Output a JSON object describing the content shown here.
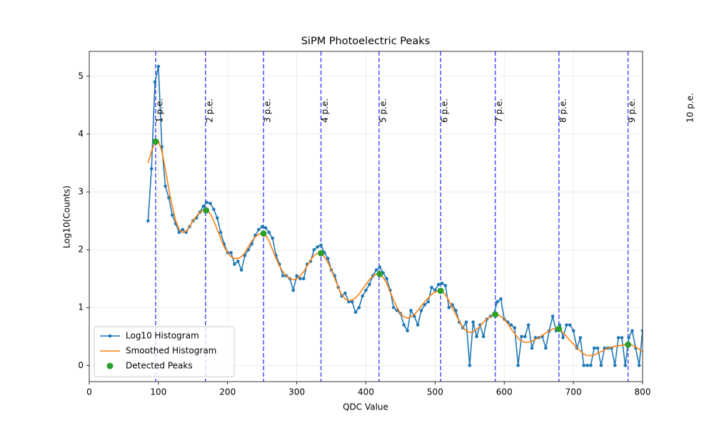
{
  "chart_data": {
    "type": "line",
    "title": "SiPM Photoelectric Peaks",
    "xlabel": "QDC Value",
    "ylabel": "Log10(Counts)",
    "x": [
      85,
      90,
      95,
      100,
      105,
      110,
      115,
      120,
      125,
      130,
      135,
      140,
      145,
      150,
      155,
      160,
      165,
      170,
      175,
      180,
      185,
      190,
      195,
      200,
      205,
      210,
      215,
      220,
      225,
      230,
      235,
      240,
      245,
      250,
      255,
      260,
      265,
      270,
      275,
      280,
      285,
      290,
      295,
      300,
      305,
      310,
      315,
      320,
      325,
      330,
      335,
      340,
      345,
      350,
      355,
      360,
      365,
      370,
      375,
      380,
      385,
      390,
      395,
      400,
      405,
      410,
      415,
      420,
      425,
      430,
      435,
      440,
      445,
      450,
      455,
      460,
      465,
      470,
      475,
      480,
      485,
      490,
      495,
      500,
      505,
      510,
      515,
      520,
      525,
      530,
      535,
      540,
      545,
      550,
      555,
      560,
      565,
      570,
      575,
      580,
      585,
      590,
      595,
      600,
      605,
      610,
      615,
      620,
      625,
      630,
      635,
      640,
      645,
      650,
      655,
      660,
      665,
      670,
      675,
      680,
      685,
      690,
      695,
      700,
      705,
      710,
      715,
      720,
      725,
      730,
      735,
      740,
      745,
      750,
      755,
      760,
      765,
      770,
      775,
      780,
      785,
      790,
      795,
      800
    ],
    "series": [
      {
        "name": "Log10 Histogram",
        "color": "#1f77b4",
        "marker": true,
        "values": [
          2.5,
          3.4,
          4.9,
          5.17,
          3.78,
          3.1,
          2.9,
          2.6,
          2.45,
          2.3,
          2.35,
          2.3,
          2.4,
          2.5,
          2.55,
          2.65,
          2.75,
          2.82,
          2.8,
          2.7,
          2.55,
          2.3,
          2.1,
          1.95,
          1.95,
          1.75,
          1.8,
          1.65,
          1.9,
          2.0,
          2.1,
          2.25,
          2.35,
          2.4,
          2.38,
          2.3,
          2.2,
          1.9,
          1.75,
          1.55,
          1.55,
          1.5,
          1.3,
          1.55,
          1.5,
          1.5,
          1.75,
          1.8,
          2.0,
          2.05,
          2.08,
          1.95,
          1.85,
          1.65,
          1.55,
          1.35,
          1.2,
          1.25,
          1.1,
          1.1,
          0.92,
          1.0,
          1.2,
          1.3,
          1.4,
          1.55,
          1.65,
          1.7,
          1.6,
          1.5,
          1.3,
          1.0,
          0.95,
          0.9,
          0.7,
          0.6,
          0.95,
          0.85,
          0.7,
          0.95,
          1.05,
          1.1,
          1.35,
          1.3,
          1.4,
          1.42,
          1.38,
          1.0,
          1.05,
          0.95,
          0.75,
          0.65,
          0.75,
          0.0,
          0.75,
          0.5,
          0.7,
          0.5,
          0.8,
          0.85,
          0.9,
          1.1,
          1.15,
          0.8,
          0.75,
          0.7,
          0.65,
          0.0,
          0.5,
          0.5,
          0.7,
          0.3,
          0.48,
          0.48,
          0.5,
          0.3,
          0.6,
          0.85,
          0.6,
          0.7,
          0.48,
          0.7,
          0.7,
          0.6,
          0.3,
          0.48,
          0.0,
          0.0,
          0.0,
          0.3,
          0.3,
          0.0,
          0.3,
          0.3,
          0.3,
          0.0,
          0.48,
          0.48,
          0.0,
          0.48,
          0.6,
          0.3,
          0.0,
          0.6
        ]
      },
      {
        "name": "Smoothed Histogram",
        "color": "#ff7f0e",
        "marker": false,
        "values": [
          3.5,
          3.7,
          3.85,
          3.88,
          3.7,
          3.4,
          3.05,
          2.75,
          2.5,
          2.35,
          2.3,
          2.32,
          2.4,
          2.5,
          2.58,
          2.65,
          2.68,
          2.68,
          2.62,
          2.5,
          2.35,
          2.2,
          2.05,
          1.95,
          1.88,
          1.85,
          1.85,
          1.88,
          1.95,
          2.05,
          2.15,
          2.22,
          2.27,
          2.28,
          2.25,
          2.15,
          2.0,
          1.85,
          1.72,
          1.62,
          1.55,
          1.5,
          1.48,
          1.5,
          1.55,
          1.62,
          1.72,
          1.82,
          1.9,
          1.94,
          1.94,
          1.88,
          1.78,
          1.65,
          1.5,
          1.35,
          1.22,
          1.15,
          1.12,
          1.13,
          1.17,
          1.23,
          1.32,
          1.4,
          1.48,
          1.55,
          1.58,
          1.58,
          1.52,
          1.42,
          1.28,
          1.13,
          1.0,
          0.9,
          0.84,
          0.82,
          0.84,
          0.88,
          0.95,
          1.03,
          1.1,
          1.17,
          1.23,
          1.27,
          1.29,
          1.28,
          1.22,
          1.12,
          1.0,
          0.88,
          0.76,
          0.66,
          0.6,
          0.57,
          0.58,
          0.62,
          0.68,
          0.75,
          0.8,
          0.85,
          0.88,
          0.88,
          0.85,
          0.8,
          0.72,
          0.63,
          0.55,
          0.47,
          0.42,
          0.4,
          0.4,
          0.42,
          0.45,
          0.48,
          0.52,
          0.56,
          0.6,
          0.63,
          0.64,
          0.62,
          0.57,
          0.5,
          0.43,
          0.37,
          0.3,
          0.25,
          0.2,
          0.17,
          0.17,
          0.18,
          0.21,
          0.24,
          0.27,
          0.3,
          0.32,
          0.33,
          0.34,
          0.35,
          0.36,
          0.36,
          0.35,
          0.32,
          0.28,
          0.24
        ]
      }
    ],
    "peaks": {
      "name": "Detected Peaks",
      "color": "#2ca02c",
      "x": [
        96,
        169,
        252,
        335,
        420,
        508,
        587,
        679,
        779
      ],
      "y": [
        3.87,
        2.68,
        2.28,
        1.94,
        1.58,
        1.29,
        0.88,
        0.63,
        0.36
      ]
    },
    "pe_lines": {
      "color": "#0000ff",
      "x": [
        96,
        168,
        252,
        335,
        419,
        508,
        587,
        679,
        779,
        863
      ],
      "labels": [
        "1 p.e.",
        "2 p.e.",
        "3 p.e.",
        "4 p.e.",
        "5 p.e.",
        "6 p.e.",
        "7 p.e.",
        "8 p.e.",
        "9 p.e.",
        "10 p.e."
      ]
    },
    "xlim": [
      0,
      800
    ],
    "ylim": [
      -0.28,
      5.43
    ],
    "xticks": [
      0,
      100,
      200,
      300,
      400,
      500,
      600,
      700,
      800
    ],
    "yticks": [
      0,
      1,
      2,
      3,
      4,
      5
    ],
    "grid": true,
    "legend": "lower left"
  }
}
